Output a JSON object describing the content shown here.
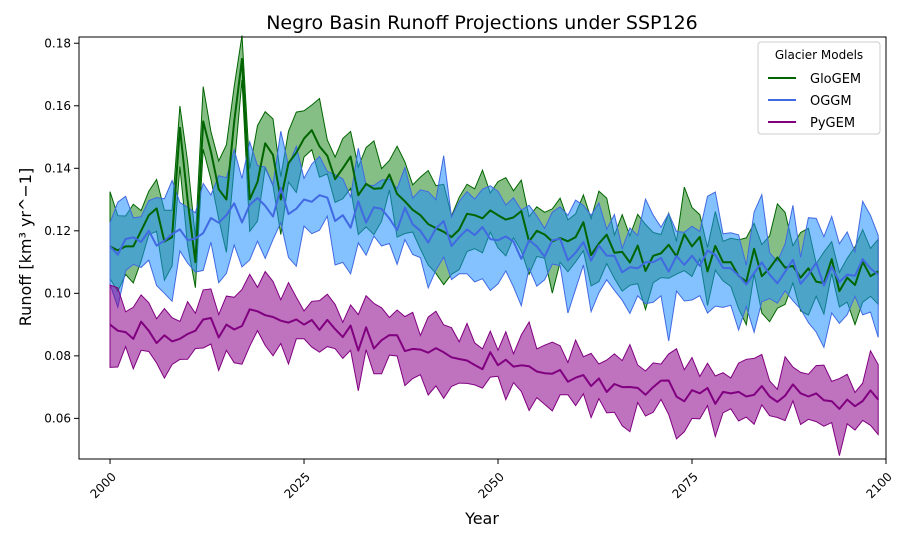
{
  "chart_data": {
    "type": "line",
    "title": "Negro Basin Runoff Projections under SSP126",
    "xlabel": "Year",
    "ylabel": "Runoff [km³ yr^−1]",
    "xlim": [
      1996,
      2100
    ],
    "ylim": [
      0.047,
      0.182
    ],
    "x_ticks": [
      2000,
      2025,
      2050,
      2075,
      2100
    ],
    "y_ticks": [
      0.06,
      0.08,
      0.1,
      0.12,
      0.14,
      0.16,
      0.18
    ],
    "x_tick_labels": [
      "2000",
      "2025",
      "2050",
      "2075",
      "2100"
    ],
    "y_tick_labels": [
      "0.06",
      "0.08",
      "0.10",
      "0.12",
      "0.14",
      "0.16",
      "0.18"
    ],
    "grid": false,
    "legend": {
      "title": "Glacier Models",
      "placement": "top-right"
    },
    "series": [
      {
        "name": "GloGEM",
        "color": "#006400",
        "band_color": "#228B22",
        "anchors_x": [
          2000,
          2003,
          2005,
          2008,
          2009,
          2011,
          2012,
          2015,
          2017,
          2018,
          2020,
          2022,
          2024,
          2027,
          2030,
          2033,
          2036,
          2040,
          2044,
          2047,
          2050,
          2055,
          2060,
          2065,
          2070,
          2075,
          2080,
          2085,
          2090,
          2095,
          2099
        ],
        "mean_anchors": [
          0.115,
          0.115,
          0.125,
          0.118,
          0.153,
          0.11,
          0.155,
          0.13,
          0.175,
          0.13,
          0.148,
          0.13,
          0.145,
          0.147,
          0.14,
          0.135,
          0.138,
          0.125,
          0.118,
          0.125,
          0.125,
          0.12,
          0.118,
          0.113,
          0.112,
          0.115,
          0.11,
          0.108,
          0.108,
          0.105,
          0.107
        ],
        "half_width": 0.01
      },
      {
        "name": "OGGM",
        "color": "#4169E1",
        "band_color": "#1E90FF",
        "anchors_x": [
          2000,
          2005,
          2010,
          2015,
          2020,
          2025,
          2030,
          2035,
          2040,
          2045,
          2050,
          2055,
          2060,
          2065,
          2070,
          2075,
          2080,
          2085,
          2090,
          2095,
          2099
        ],
        "mean_anchors": [
          0.115,
          0.12,
          0.117,
          0.125,
          0.128,
          0.13,
          0.125,
          0.127,
          0.12,
          0.118,
          0.117,
          0.115,
          0.113,
          0.112,
          0.11,
          0.112,
          0.108,
          0.106,
          0.106,
          0.106,
          0.106
        ],
        "half_width": 0.012
      },
      {
        "name": "PyGEM",
        "color": "#800080",
        "band_color": "#8B008B",
        "anchors_x": [
          2000,
          2005,
          2010,
          2015,
          2020,
          2025,
          2030,
          2035,
          2040,
          2045,
          2050,
          2055,
          2060,
          2065,
          2070,
          2075,
          2080,
          2085,
          2090,
          2095,
          2099
        ],
        "mean_anchors": [
          0.09,
          0.088,
          0.087,
          0.09,
          0.093,
          0.09,
          0.086,
          0.085,
          0.082,
          0.079,
          0.077,
          0.075,
          0.073,
          0.071,
          0.07,
          0.069,
          0.068,
          0.067,
          0.067,
          0.066,
          0.066
        ],
        "half_width": 0.008
      }
    ]
  }
}
